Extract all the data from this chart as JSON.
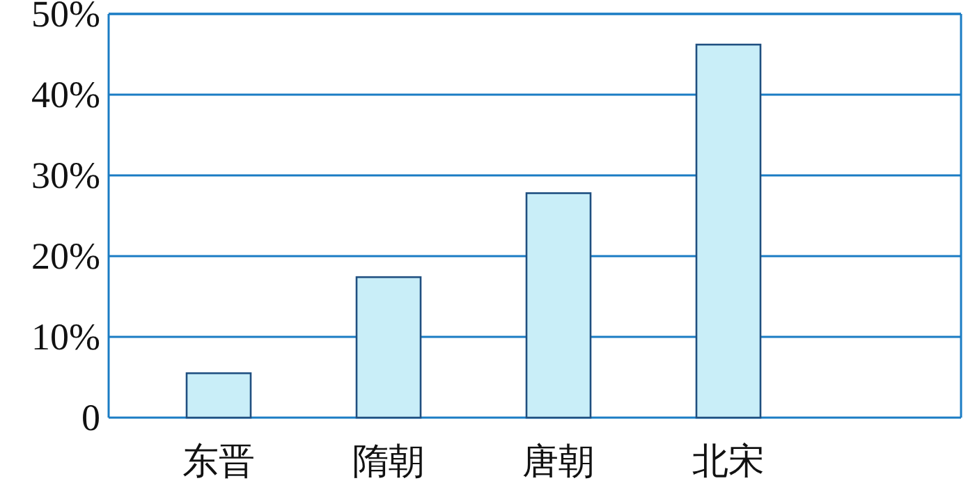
{
  "chart_data": {
    "type": "bar",
    "categories": [
      "东晋",
      "隋朝",
      "唐朝",
      "北宋"
    ],
    "values": [
      5.5,
      17.4,
      27.8,
      46.2
    ],
    "color": "#c9eef8",
    "ylim": [
      0,
      50
    ],
    "yticks": [
      {
        "value": 0,
        "label": "0"
      },
      {
        "value": 10,
        "label": "10%"
      },
      {
        "value": 20,
        "label": "20%"
      },
      {
        "value": 30,
        "label": "30%"
      },
      {
        "value": 40,
        "label": "40%"
      },
      {
        "value": 50,
        "label": "50%"
      }
    ],
    "grid": "y"
  }
}
